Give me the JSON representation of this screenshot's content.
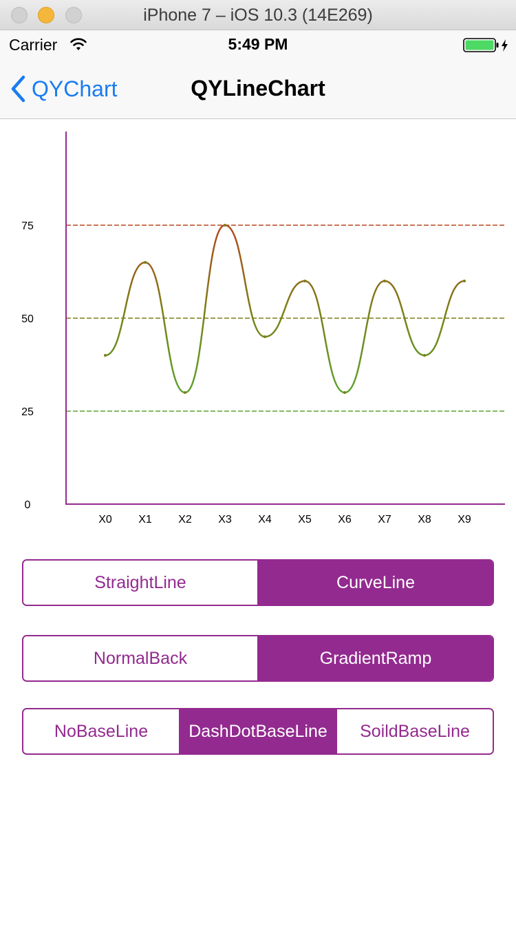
{
  "window": {
    "title": "iPhone 7 – iOS 10.3 (14E269)"
  },
  "status_bar": {
    "carrier": "Carrier",
    "time": "5:49 PM"
  },
  "nav": {
    "back_label": "QYChart",
    "title": "QYLineChart"
  },
  "colors": {
    "accent": "#932a8f",
    "ios_blue": "#1a7cf0",
    "line_high": "#b5461e",
    "line_mid": "#7d7e17",
    "line_low": "#5aa32d",
    "battery": "#4cd964"
  },
  "chart_data": {
    "type": "line",
    "smooth": true,
    "gradient_fill": true,
    "categories": [
      "X0",
      "X1",
      "X2",
      "X3",
      "X4",
      "X5",
      "X6",
      "X7",
      "X8",
      "X9"
    ],
    "values": [
      40,
      65,
      30,
      75,
      45,
      60,
      30,
      60,
      40,
      60
    ],
    "ylim": [
      0,
      100
    ],
    "yticks": [
      "0",
      "25",
      "50",
      "75"
    ],
    "baselines": [
      {
        "value": 75,
        "style": "dashed",
        "color": "#b5461e"
      },
      {
        "value": 50,
        "style": "dashed",
        "color": "#7d7e17"
      },
      {
        "value": 25,
        "style": "dashed",
        "color": "#5aa32d"
      }
    ],
    "axis_color": "#932a8f",
    "grid": false,
    "legend": "none"
  },
  "controls": {
    "line_type": {
      "options": [
        "StraightLine",
        "CurveLine"
      ],
      "selected": 1
    },
    "background": {
      "options": [
        "NormalBack",
        "GradientRamp"
      ],
      "selected": 1
    },
    "baseline": {
      "options": [
        "NoBaseLine",
        "DashDotBaseLine",
        "SoildBaseLine"
      ],
      "selected": 1
    }
  }
}
